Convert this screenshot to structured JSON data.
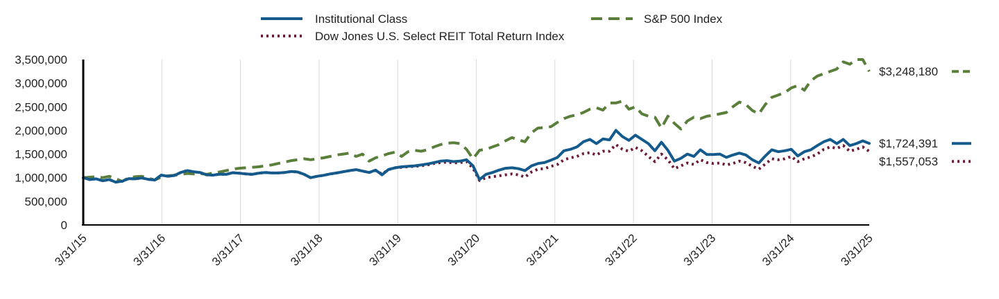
{
  "chart_data": {
    "type": "line",
    "x_labels": [
      "3/31/15",
      "3/31/16",
      "3/31/17",
      "3/31/18",
      "3/31/19",
      "3/31/20",
      "3/31/21",
      "3/31/22",
      "3/31/23",
      "3/31/24",
      "3/31/25"
    ],
    "y_ticks": [
      "0",
      "500,000",
      "1,000,000",
      "1,500,000",
      "2,000,000",
      "2,500,000",
      "3,000,000",
      "3,500,000"
    ],
    "ylim": [
      0,
      3500000
    ],
    "grid": "vertical",
    "legend_position": "top",
    "series": [
      {
        "name": "Institutional Class",
        "color": "#145a8c",
        "style": "solid",
        "end_label": "$1,724,391",
        "values": [
          1000000,
          960000,
          975000,
          935000,
          960000,
          905000,
          925000,
          980000,
          975000,
          995000,
          965000,
          950000,
          1055000,
          1030000,
          1045000,
          1110000,
          1150000,
          1125000,
          1110000,
          1060000,
          1055000,
          1075000,
          1070000,
          1105000,
          1095000,
          1080000,
          1070000,
          1095000,
          1110000,
          1100000,
          1100000,
          1110000,
          1130000,
          1120000,
          1070000,
          1000000,
          1030000,
          1050000,
          1080000,
          1100000,
          1125000,
          1150000,
          1170000,
          1140000,
          1110000,
          1160000,
          1060000,
          1175000,
          1210000,
          1230000,
          1240000,
          1250000,
          1270000,
          1290000,
          1320000,
          1350000,
          1360000,
          1340000,
          1350000,
          1380000,
          1250000,
          960000,
          1070000,
          1110000,
          1160000,
          1200000,
          1210000,
          1190000,
          1150000,
          1250000,
          1300000,
          1320000,
          1370000,
          1430000,
          1570000,
          1600000,
          1650000,
          1760000,
          1810000,
          1720000,
          1820000,
          1800000,
          2000000,
          1870000,
          1790000,
          1900000,
          1810000,
          1720000,
          1570000,
          1750000,
          1580000,
          1350000,
          1410000,
          1500000,
          1450000,
          1590000,
          1490000,
          1490000,
          1500000,
          1430000,
          1480000,
          1520000,
          1480000,
          1380000,
          1310000,
          1460000,
          1590000,
          1550000,
          1570000,
          1600000,
          1460000,
          1550000,
          1590000,
          1680000,
          1760000,
          1810000,
          1720000,
          1810000,
          1680000,
          1720000,
          1780000,
          1724391
        ]
      },
      {
        "name": "S&P 500 Index",
        "color": "#5a7f3a",
        "style": "dashed",
        "end_label": "$3,248,180",
        "values": [
          1000000,
          1010000,
          1020000,
          1000000,
          1030000,
          980000,
          920000,
          1000000,
          1020000,
          1030000,
          990000,
          950000,
          1010000,
          1040000,
          1050000,
          1070000,
          1090000,
          1080000,
          1090000,
          1070000,
          1100000,
          1120000,
          1150000,
          1180000,
          1200000,
          1210000,
          1220000,
          1230000,
          1250000,
          1270000,
          1300000,
          1330000,
          1360000,
          1380000,
          1400000,
          1380000,
          1400000,
          1420000,
          1450000,
          1480000,
          1500000,
          1520000,
          1450000,
          1500000,
          1350000,
          1420000,
          1460000,
          1510000,
          1540000,
          1450000,
          1550000,
          1580000,
          1560000,
          1590000,
          1650000,
          1700000,
          1730000,
          1740000,
          1720000,
          1600000,
          1400000,
          1580000,
          1600000,
          1650000,
          1700000,
          1780000,
          1850000,
          1800000,
          1760000,
          1950000,
          2050000,
          2060000,
          2080000,
          2170000,
          2250000,
          2300000,
          2330000,
          2380000,
          2450000,
          2480000,
          2430000,
          2580000,
          2580000,
          2620000,
          2450000,
          2500000,
          2350000,
          2300000,
          2280000,
          2050000,
          2300000,
          2150000,
          2030000,
          2200000,
          2280000,
          2250000,
          2300000,
          2320000,
          2350000,
          2380000,
          2500000,
          2600000,
          2550000,
          2420000,
          2350000,
          2550000,
          2700000,
          2750000,
          2800000,
          2900000,
          2950000,
          2850000,
          3050000,
          3150000,
          3200000,
          3250000,
          3300000,
          3450000,
          3400000,
          3500000,
          3500000,
          3248180
        ]
      },
      {
        "name": "Dow Jones U.S. Select REIT Total Return Index",
        "color": "#6b1a3a",
        "style": "dotted",
        "end_label": "$1,557,053",
        "values": [
          1000000,
          960000,
          975000,
          935000,
          960000,
          905000,
          925000,
          980000,
          975000,
          995000,
          965000,
          950000,
          1055000,
          1030000,
          1045000,
          1110000,
          1150000,
          1125000,
          1110000,
          1060000,
          1055000,
          1075000,
          1070000,
          1105000,
          1095000,
          1080000,
          1070000,
          1095000,
          1110000,
          1100000,
          1100000,
          1110000,
          1130000,
          1120000,
          1070000,
          1000000,
          1030000,
          1050000,
          1080000,
          1100000,
          1125000,
          1150000,
          1170000,
          1140000,
          1110000,
          1150000,
          1080000,
          1170000,
          1210000,
          1220000,
          1230000,
          1240000,
          1250000,
          1270000,
          1300000,
          1320000,
          1330000,
          1310000,
          1320000,
          1340000,
          1200000,
          940000,
          1000000,
          1020000,
          1040000,
          1060000,
          1080000,
          1060000,
          1010000,
          1120000,
          1180000,
          1190000,
          1240000,
          1280000,
          1380000,
          1420000,
          1450000,
          1510000,
          1530000,
          1480000,
          1560000,
          1560000,
          1700000,
          1600000,
          1560000,
          1640000,
          1570000,
          1450000,
          1340000,
          1500000,
          1380000,
          1190000,
          1250000,
          1310000,
          1280000,
          1380000,
          1320000,
          1300000,
          1310000,
          1270000,
          1300000,
          1350000,
          1320000,
          1240000,
          1180000,
          1290000,
          1400000,
          1380000,
          1400000,
          1450000,
          1340000,
          1400000,
          1440000,
          1500000,
          1600000,
          1650000,
          1620000,
          1680000,
          1560000,
          1600000,
          1650000,
          1557053
        ]
      }
    ]
  }
}
